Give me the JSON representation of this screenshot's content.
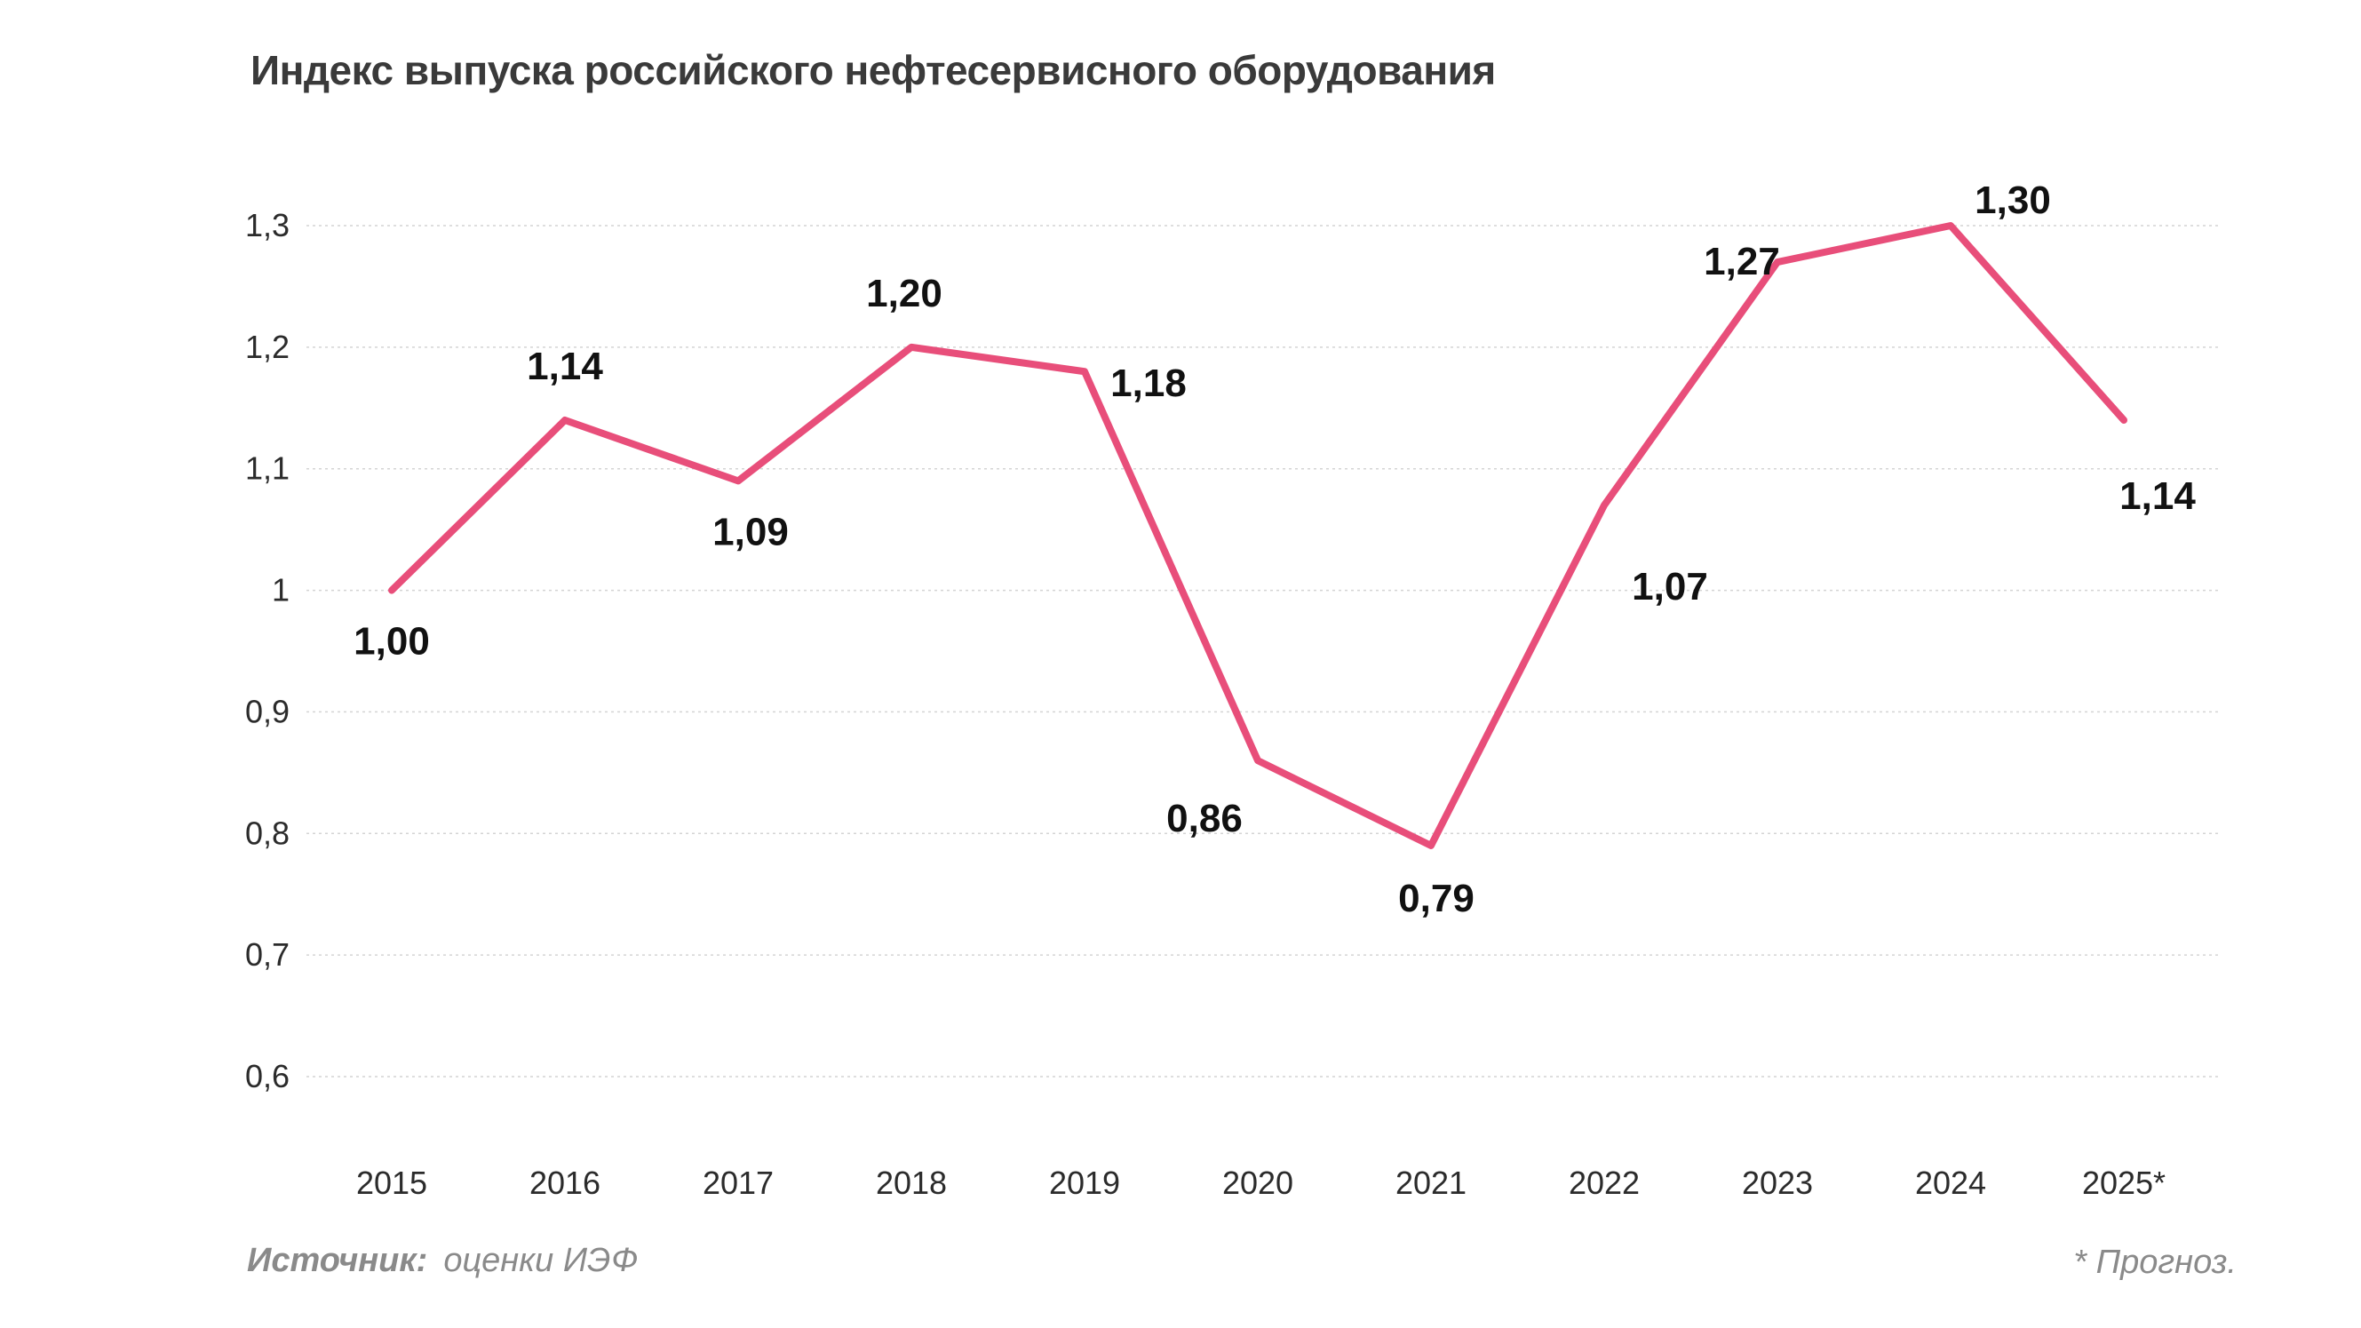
{
  "chart_data": {
    "type": "line",
    "title": "Индекс выпуска российского нефтесервисного оборудования",
    "xlabel": "",
    "ylabel": "",
    "categories": [
      "2015",
      "2016",
      "2017",
      "2018",
      "2019",
      "2020",
      "2021",
      "2022",
      "2023",
      "2024",
      "2025*"
    ],
    "series": [
      {
        "name": "Индекс выпуска",
        "color": "#e84e7a",
        "values": [
          1.0,
          1.14,
          1.09,
          1.2,
          1.18,
          0.86,
          0.79,
          1.07,
          1.27,
          1.3,
          1.14
        ],
        "labels": [
          "1,00",
          "1,14",
          "1,09",
          "1,20",
          "1,18",
          "0,86",
          "0,79",
          "1,07",
          "1,27",
          "1,30",
          "1,14"
        ]
      }
    ],
    "ylim": [
      0.6,
      1.3
    ],
    "yticks": [
      0.6,
      0.7,
      0.8,
      0.9,
      1.0,
      1.1,
      1.2,
      1.3
    ],
    "ytick_labels": [
      "0,6",
      "0,7",
      "0,8",
      "0,9",
      "1",
      "1,1",
      "1,2",
      "1,3"
    ],
    "grid": true,
    "legend": "none"
  },
  "source": {
    "key": "Источник:",
    "value": "оценки ИЭФ"
  },
  "footnote": "* Прогноз."
}
